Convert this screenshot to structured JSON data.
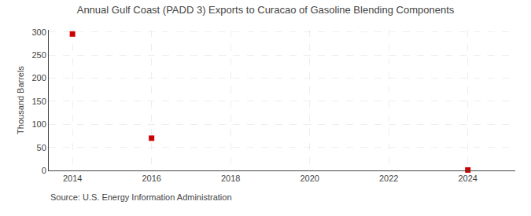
{
  "chart_data": {
    "type": "scatter",
    "title": "Annual Gulf Coast (PADD 3) Exports to Curacao of Gasoline Blending Components",
    "ylabel": "Thousand Barrels",
    "annotations": [
      "Source: U.S. Energy Information Administration"
    ],
    "x": [
      2014,
      2016,
      2024
    ],
    "values": [
      296,
      70,
      1
    ],
    "color": "#cc0000",
    "marker": "square",
    "xlim": [
      2013.4,
      2025.2
    ],
    "ylim": [
      0,
      305
    ],
    "xticks": [
      2014,
      2016,
      2018,
      2020,
      2022,
      2024
    ],
    "yticks": [
      0,
      50,
      100,
      150,
      200,
      250,
      300
    ],
    "grid": true
  }
}
